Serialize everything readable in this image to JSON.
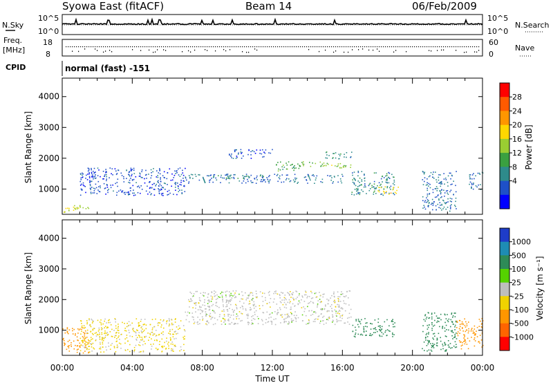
{
  "header": {
    "station": "Syowa East (fitACF)",
    "beam": "Beam 14",
    "date": "06/Feb/2009"
  },
  "noise_panel": {
    "left_label": "N.Sky",
    "right_label": "N.Search",
    "y_ticks_left": [
      "10^5",
      "10^0"
    ],
    "y_ticks_right": [
      "10^5",
      "10^0"
    ]
  },
  "freq_panel": {
    "left_label_top": "Freq.",
    "left_label_bottom": "[MHz]",
    "left_ticks": [
      "18",
      "8"
    ],
    "right_label": "Nave",
    "right_ticks": [
      "60",
      "0"
    ]
  },
  "cpid": {
    "label": "CPID",
    "value": "normal (fast) -151"
  },
  "power_colorbar": {
    "label": "Power [dB]",
    "ticks": [
      "28",
      "24",
      "20",
      "16",
      "12",
      "8",
      "4"
    ],
    "colors": [
      "#ff0000",
      "#ff5a00",
      "#ff9600",
      "#ffd700",
      "#9acd32",
      "#3aa040",
      "#2e8b8b",
      "#1e50c8",
      "#0000ff"
    ]
  },
  "velocity_colorbar": {
    "label": "Velocity [m s⁻¹]",
    "ticks": [
      "1000",
      "500",
      "100",
      "25",
      "-25",
      "-100",
      "-500",
      "-1000"
    ],
    "colors": [
      "#1e3cc8",
      "#1e8cb4",
      "#2e8b57",
      "#55d200",
      "#bebebe",
      "#f0d200",
      "#ff9600",
      "#ff6400",
      "#ff0000"
    ]
  },
  "x_axis": {
    "label": "Time UT",
    "ticks": [
      "00:00",
      "04:00",
      "08:00",
      "12:00",
      "16:00",
      "20:00",
      "00:00"
    ]
  },
  "chart_data": [
    {
      "type": "heatmap",
      "title": "Power",
      "ylabel": "Slant Range [km]",
      "xlabel": "Time UT",
      "ylim": [
        180,
        4600
      ],
      "xlim_hours": [
        0,
        24
      ],
      "y_ticks": [
        1000,
        2000,
        3000,
        4000
      ],
      "x_ticks": [
        "00:00",
        "04:00",
        "08:00",
        "12:00",
        "16:00",
        "20:00",
        "00:00"
      ],
      "colorbar": {
        "label": "Power [dB]",
        "ticks": [
          4,
          8,
          12,
          16,
          20,
          24,
          28
        ]
      },
      "echo_regions": [
        {
          "t_start": 0.0,
          "t_end": 1.5,
          "r_low": 250,
          "r_high": 500,
          "value": 20
        },
        {
          "t_start": 1.0,
          "t_end": 7.0,
          "r_low": 800,
          "r_high": 1700,
          "value": 6
        },
        {
          "t_start": 7.0,
          "t_end": 16.0,
          "r_low": 1200,
          "r_high": 1500,
          "value": 8
        },
        {
          "t_start": 8.5,
          "t_end": 11.5,
          "r_low": 1350,
          "r_high": 1450,
          "value": 12
        },
        {
          "t_start": 9.5,
          "t_end": 12.0,
          "r_low": 2000,
          "r_high": 2300,
          "value": 6
        },
        {
          "t_start": 12.0,
          "t_end": 13.5,
          "r_low": 1600,
          "r_high": 1900,
          "value": 14
        },
        {
          "t_start": 13.5,
          "t_end": 15.0,
          "r_low": 1750,
          "r_high": 1900,
          "value": 16
        },
        {
          "t_start": 14.8,
          "t_end": 16.5,
          "r_low": 1700,
          "r_high": 1850,
          "value": 18
        },
        {
          "t_start": 15.0,
          "t_end": 16.5,
          "r_low": 2000,
          "r_high": 2250,
          "value": 10
        },
        {
          "t_start": 16.5,
          "t_end": 19.0,
          "r_low": 800,
          "r_high": 1600,
          "value": 10
        },
        {
          "t_start": 18.0,
          "t_end": 19.2,
          "r_low": 850,
          "r_high": 1100,
          "value": 22
        },
        {
          "t_start": 20.5,
          "t_end": 22.5,
          "r_low": 300,
          "r_high": 1600,
          "value": 8
        },
        {
          "t_start": 23.2,
          "t_end": 24.0,
          "r_low": 1000,
          "r_high": 1600,
          "value": 8
        }
      ]
    },
    {
      "type": "heatmap",
      "title": "Velocity",
      "ylabel": "Slant Range [km]",
      "xlabel": "Time UT",
      "ylim": [
        180,
        4600
      ],
      "xlim_hours": [
        0,
        24
      ],
      "y_ticks": [
        1000,
        2000,
        3000,
        4000
      ],
      "x_ticks": [
        "00:00",
        "04:00",
        "08:00",
        "12:00",
        "16:00",
        "20:00",
        "00:00"
      ],
      "colorbar": {
        "label": "Velocity [m s⁻¹]",
        "ticks": [
          -1000,
          -500,
          -100,
          -25,
          25,
          100,
          500,
          1000
        ]
      },
      "echo_regions": [
        {
          "t_start": 0.0,
          "t_end": 1.5,
          "r_low": 250,
          "r_high": 1100,
          "value": -300
        },
        {
          "t_start": 1.0,
          "t_end": 7.0,
          "r_low": 300,
          "r_high": 1400,
          "value": -40
        },
        {
          "t_start": 7.0,
          "t_end": 16.5,
          "r_low": 1200,
          "r_high": 2300,
          "value": 0
        },
        {
          "t_start": 16.5,
          "t_end": 19.0,
          "r_low": 800,
          "r_high": 1400,
          "value": 200
        },
        {
          "t_start": 20.5,
          "t_end": 22.5,
          "r_low": 300,
          "r_high": 1600,
          "value": 300
        },
        {
          "t_start": 22.5,
          "t_end": 24.0,
          "r_low": 400,
          "r_high": 1400,
          "value": -150
        }
      ]
    }
  ]
}
